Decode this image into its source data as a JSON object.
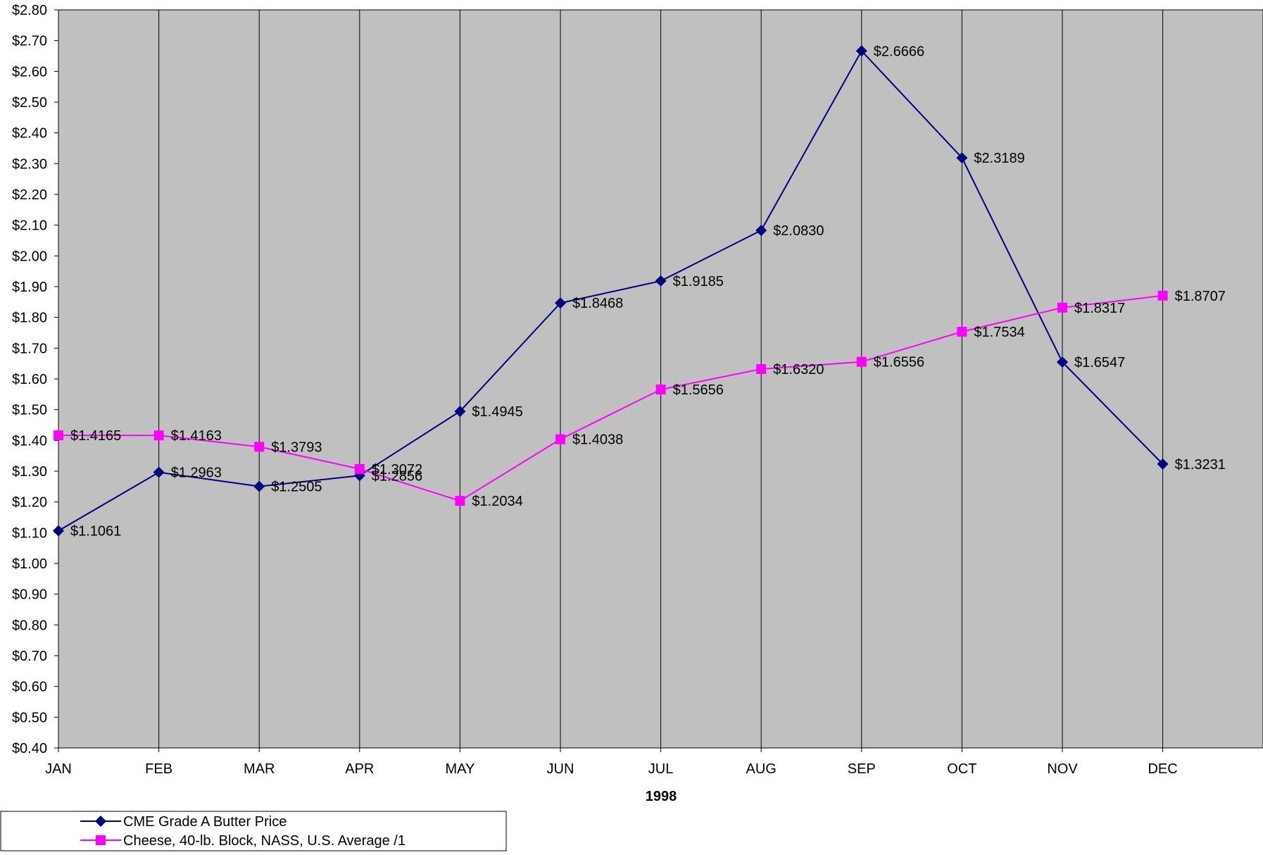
{
  "chart_data": {
    "type": "line",
    "title": "",
    "xlabel": "1998",
    "ylabel": "",
    "categories": [
      "JAN",
      "FEB",
      "MAR",
      "APR",
      "MAY",
      "JUN",
      "JUL",
      "AUG",
      "SEP",
      "OCT",
      "NOV",
      "DEC"
    ],
    "ylim": [
      0.4,
      2.8
    ],
    "ytick_step": 0.1,
    "y_format": "$0.00",
    "grid": {
      "vertical": true,
      "horizontal": false
    },
    "plot_background": "#c0c0c0",
    "legend_placement": "bottom-left",
    "series": [
      {
        "name": "CME Grade A Butter Price",
        "color": "#000080",
        "marker": "diamond",
        "values": [
          1.1061,
          1.2963,
          1.2505,
          1.2856,
          1.4945,
          1.8468,
          1.9185,
          2.083,
          2.6666,
          2.3189,
          1.6547,
          1.3231
        ],
        "labels": [
          "$1.1061",
          "$1.2963",
          "$1.2505",
          "$1.2856",
          "$1.4945",
          "$1.8468",
          "$1.9185",
          "$2.0830",
          "$2.6666",
          "$2.3189",
          "$1.6547",
          "$1.3231"
        ]
      },
      {
        "name": "Cheese, 40-lb. Block, NASS, U.S. Average /1",
        "color": "#ff00ff",
        "marker": "square",
        "values": [
          1.4165,
          1.4163,
          1.3793,
          1.3072,
          1.2034,
          1.4038,
          1.5656,
          1.632,
          1.6556,
          1.7534,
          1.8317,
          1.8707
        ],
        "labels": [
          "$1.4165",
          "$1.4163",
          "$1.3793",
          "$1.3072",
          "$1.2034",
          "$1.4038",
          "$1.5656",
          "$1.6320",
          "$1.6556",
          "$1.7534",
          "$1.8317",
          "$1.8707"
        ]
      }
    ]
  }
}
